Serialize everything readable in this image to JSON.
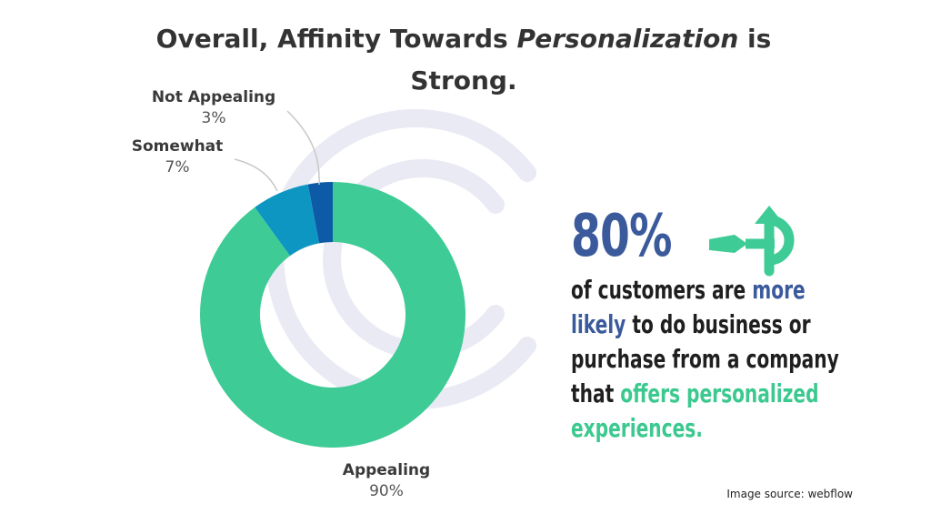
{
  "title": {
    "part1": "Overall, Affinity Towards ",
    "emphasis": "Personalization",
    "part2": " is Strong."
  },
  "chart_data": {
    "type": "pie",
    "donut": true,
    "categories": [
      "Appealing",
      "Somewhat",
      "Not Appealing"
    ],
    "values": [
      90,
      7,
      3
    ],
    "value_labels": [
      "90%",
      "7%",
      "3%"
    ],
    "colors": [
      "#3ecb96",
      "#0d96c1",
      "#0d5aa7"
    ]
  },
  "stat": {
    "value": "80%",
    "line_1a": "of customers are ",
    "line_1b": "more",
    "line_2a": "likely",
    "line_2b": " to do business or",
    "line_3": "purchase from a company",
    "line_4a": "that ",
    "line_4b": "offers personalized",
    "line_5": "experiences."
  },
  "colors": {
    "accent_blue": "#3a5a9c",
    "accent_green": "#3cc98f",
    "watermark": "#e9eaf4"
  },
  "source": "Image source: webflow"
}
